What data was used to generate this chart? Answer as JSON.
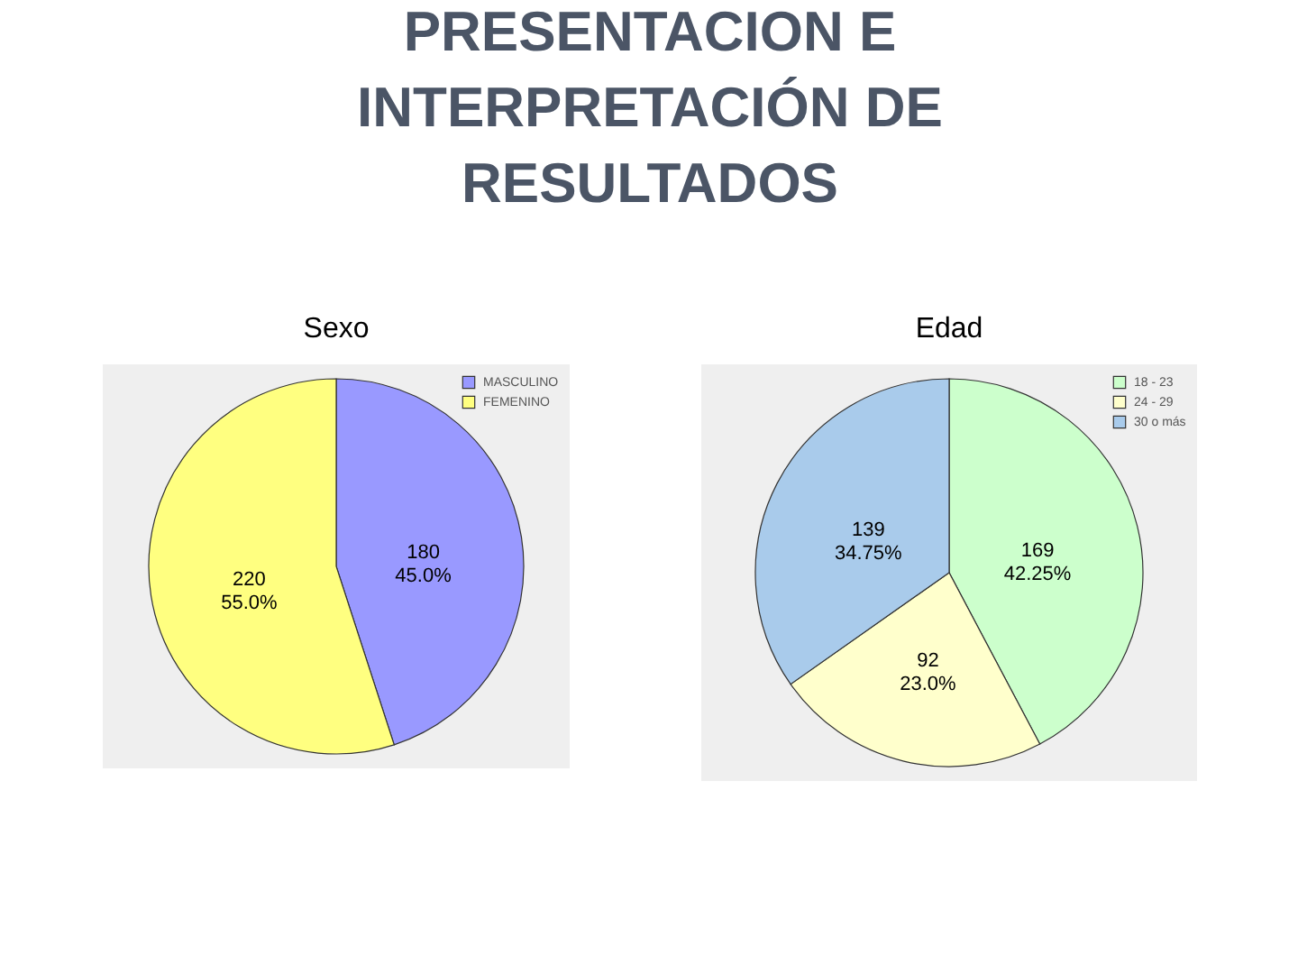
{
  "chart_data": [
    {
      "type": "other",
      "title": "PRESENTACION E INTERPRETACIÓN DE RESULTADOS"
    },
    {
      "type": "pie",
      "title": "Sexo",
      "categories": [
        "MASCULINO",
        "FEMENINO"
      ],
      "values": [
        180,
        220
      ],
      "colors": [
        "#9999ff",
        "#ffff80"
      ],
      "value_labels": [
        "180\n45.0%",
        "220\n55.0%"
      ],
      "legend": "top right"
    },
    {
      "type": "pie",
      "title": "Edad",
      "categories": [
        "18 - 23",
        "24 - 29",
        "30 o más"
      ],
      "values": [
        169,
        92,
        139
      ],
      "colors": [
        "#ccffcc",
        "#ffffcc",
        "#a9cbeb"
      ],
      "value_labels": [
        "169\n42.25%",
        "92\n23.0%",
        "139\n34.75%"
      ],
      "legend": "top right"
    }
  ]
}
